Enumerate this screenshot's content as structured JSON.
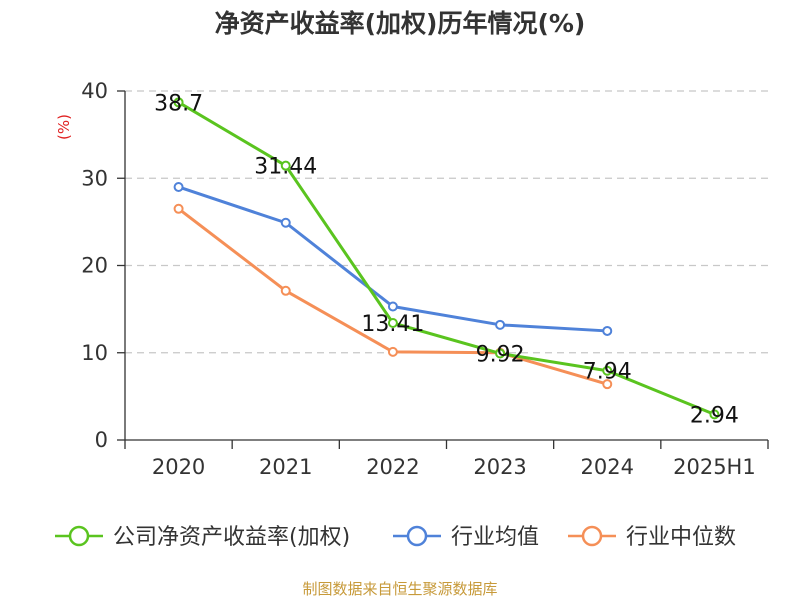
{
  "chart_data": {
    "type": "line",
    "title": "净资产收益率(加权)历年情况(%)",
    "ylabel": "(%)",
    "ylim": [
      0,
      40
    ],
    "yticks": [
      0,
      10,
      20,
      30,
      40
    ],
    "categories": [
      "2020",
      "2021",
      "2022",
      "2023",
      "2024",
      "2025H1"
    ],
    "grid": true,
    "legend_position": "bottom",
    "series": [
      {
        "name": "公司净资产收益率(加权)",
        "color": "#5ac41f",
        "values": [
          38.7,
          31.44,
          13.41,
          9.92,
          7.94,
          2.94
        ],
        "labels": [
          "38.7",
          "31.44",
          "13.41",
          "9.92",
          "7.94",
          "2.94"
        ]
      },
      {
        "name": "行业均值",
        "color": "#4f82d9",
        "values": [
          29.0,
          24.9,
          15.3,
          13.2,
          12.5,
          null
        ]
      },
      {
        "name": "行业中位数",
        "color": "#f58f57",
        "values": [
          26.5,
          17.1,
          10.1,
          10.0,
          6.4,
          null
        ]
      }
    ]
  },
  "footer": {
    "source": "制图数据来自恒生聚源数据库"
  }
}
